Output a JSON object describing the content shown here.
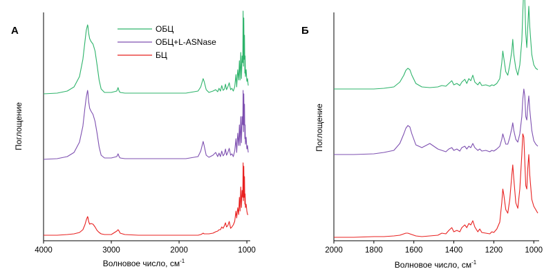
{
  "chart_data": [
    {
      "type": "line",
      "panel_label": "А",
      "xlabel": "Волновое число, см",
      "xlabel_superscript": "-1",
      "ylabel": "Поглощение",
      "xlim": [
        4000,
        950
      ],
      "x_ticks": [
        4000,
        3000,
        2000,
        1000
      ],
      "x_tick_labels": [
        "4000",
        "3000",
        "2000",
        "1000"
      ],
      "y_axis_values_shown": false,
      "legend": {
        "position": "top-center",
        "entries": [
          "ОБЦ",
          "ОБЦ+L-ASNase",
          "БЦ"
        ]
      },
      "series": [
        {
          "name": "ОБЦ",
          "color": "#2db36a",
          "offset": 2.05,
          "x": [
            4000,
            3800,
            3650,
            3550,
            3470,
            3420,
            3390,
            3370,
            3350,
            3345,
            3335,
            3320,
            3300,
            3270,
            3240,
            3210,
            3180,
            3150,
            3100,
            3000,
            2920,
            2900,
            2885,
            2870,
            2800,
            2600,
            2200,
            1900,
            1720,
            1680,
            1660,
            1645,
            1630,
            1600,
            1560,
            1500,
            1460,
            1430,
            1410,
            1390,
            1370,
            1350,
            1330,
            1315,
            1300,
            1280,
            1260,
            1240,
            1220,
            1200,
            1180,
            1160,
            1150,
            1135,
            1120,
            1110,
            1100,
            1090,
            1080,
            1070,
            1060,
            1055,
            1050,
            1045,
            1040,
            1035,
            1030,
            1025,
            1020,
            1010,
            1000,
            990,
            980
          ],
          "y": [
            0,
            0.01,
            0.04,
            0.1,
            0.25,
            0.5,
            0.75,
            0.92,
            1.0,
            0.98,
            0.88,
            0.8,
            0.76,
            0.72,
            0.62,
            0.42,
            0.2,
            0.07,
            0.02,
            0.02,
            0.04,
            0.09,
            0.04,
            0.02,
            0.01,
            0.01,
            0.01,
            0.01,
            0.04,
            0.1,
            0.17,
            0.22,
            0.18,
            0.06,
            0.02,
            0.04,
            0.06,
            0.03,
            0.08,
            0.04,
            0.12,
            0.05,
            0.07,
            0.14,
            0.06,
            0.1,
            0.16,
            0.06,
            0.08,
            0.04,
            0.1,
            0.28,
            0.1,
            0.35,
            0.2,
            0.48,
            0.2,
            0.6,
            0.22,
            0.55,
            0.45,
            1.2,
            0.4,
            1.1,
            0.5,
            0.85,
            0.3,
            0.55,
            0.25,
            0.35,
            0.18,
            0.22,
            0.12
          ]
        },
        {
          "name": "ОБЦ+L-ASNase",
          "color": "#7d4fb0",
          "offset": 1.1,
          "x": [
            4000,
            3800,
            3650,
            3550,
            3470,
            3420,
            3390,
            3370,
            3350,
            3345,
            3335,
            3320,
            3300,
            3270,
            3240,
            3210,
            3180,
            3150,
            3100,
            3000,
            2920,
            2900,
            2885,
            2870,
            2800,
            2600,
            2200,
            1900,
            1720,
            1680,
            1660,
            1645,
            1630,
            1600,
            1560,
            1500,
            1460,
            1430,
            1410,
            1390,
            1370,
            1350,
            1330,
            1315,
            1300,
            1280,
            1260,
            1240,
            1220,
            1200,
            1180,
            1160,
            1150,
            1135,
            1120,
            1110,
            1100,
            1090,
            1080,
            1070,
            1060,
            1055,
            1050,
            1045,
            1040,
            1035,
            1030,
            1025,
            1020,
            1010,
            1000,
            990,
            980
          ],
          "y": [
            0,
            0.01,
            0.04,
            0.1,
            0.25,
            0.48,
            0.74,
            0.9,
            1.0,
            0.97,
            0.84,
            0.74,
            0.7,
            0.65,
            0.55,
            0.38,
            0.18,
            0.06,
            0.02,
            0.02,
            0.04,
            0.08,
            0.04,
            0.02,
            0.01,
            0.01,
            0.01,
            0.01,
            0.04,
            0.12,
            0.2,
            0.26,
            0.2,
            0.06,
            0.03,
            0.06,
            0.1,
            0.04,
            0.09,
            0.04,
            0.12,
            0.05,
            0.08,
            0.15,
            0.06,
            0.1,
            0.16,
            0.06,
            0.08,
            0.04,
            0.12,
            0.3,
            0.1,
            0.38,
            0.2,
            0.5,
            0.2,
            0.62,
            0.24,
            0.62,
            0.5,
            1.0,
            0.4,
            0.95,
            0.5,
            0.8,
            0.3,
            0.5,
            0.22,
            0.32,
            0.15,
            0.2,
            0.1
          ]
        },
        {
          "name": "БЦ",
          "color": "#e8201f",
          "offset": 0.0,
          "x": [
            4000,
            3800,
            3650,
            3550,
            3470,
            3420,
            3390,
            3370,
            3350,
            3345,
            3335,
            3320,
            3300,
            3270,
            3240,
            3210,
            3180,
            3150,
            3100,
            3000,
            2920,
            2900,
            2885,
            2870,
            2800,
            2600,
            2200,
            1900,
            1720,
            1680,
            1660,
            1645,
            1630,
            1600,
            1560,
            1500,
            1460,
            1430,
            1410,
            1390,
            1370,
            1350,
            1330,
            1315,
            1300,
            1280,
            1260,
            1240,
            1220,
            1200,
            1180,
            1160,
            1150,
            1135,
            1120,
            1110,
            1100,
            1090,
            1080,
            1070,
            1060,
            1055,
            1050,
            1045,
            1040,
            1035,
            1030,
            1025,
            1020,
            1010,
            1000,
            990,
            980
          ],
          "y": [
            0,
            0.0,
            0.01,
            0.02,
            0.04,
            0.08,
            0.15,
            0.22,
            0.27,
            0.26,
            0.2,
            0.16,
            0.17,
            0.16,
            0.12,
            0.07,
            0.04,
            0.02,
            0.01,
            0.01,
            0.06,
            0.08,
            0.06,
            0.03,
            0.01,
            0.0,
            0.0,
            0.0,
            0.0,
            0.01,
            0.02,
            0.03,
            0.02,
            0.02,
            0.02,
            0.03,
            0.05,
            0.06,
            0.08,
            0.08,
            0.12,
            0.1,
            0.14,
            0.18,
            0.12,
            0.14,
            0.2,
            0.1,
            0.12,
            0.15,
            0.2,
            0.35,
            0.25,
            0.4,
            0.3,
            0.55,
            0.35,
            0.7,
            0.4,
            0.65,
            0.55,
            1.05,
            0.5,
            1.0,
            0.55,
            0.85,
            0.45,
            0.6,
            0.4,
            0.45,
            0.35,
            0.3,
            0.3
          ]
        }
      ]
    },
    {
      "type": "line",
      "panel_label": "Б",
      "xlabel": "Волновое число, см",
      "xlabel_superscript": "-1",
      "ylabel": "Поглощение",
      "xlim": [
        2000,
        980
      ],
      "x_ticks": [
        2000,
        1800,
        1600,
        1400,
        1200,
        1000
      ],
      "x_tick_labels": [
        "2000",
        "1800",
        "1600",
        "1400",
        "1200",
        "1000"
      ],
      "y_axis_values_shown": false,
      "series": [
        {
          "name": "ОБЦ",
          "color": "#2db36a",
          "offset": 2.15,
          "x": [
            2000,
            1900,
            1800,
            1750,
            1700,
            1670,
            1650,
            1640,
            1630,
            1620,
            1610,
            1590,
            1560,
            1520,
            1480,
            1460,
            1440,
            1425,
            1410,
            1400,
            1385,
            1370,
            1360,
            1345,
            1335,
            1325,
            1315,
            1305,
            1295,
            1280,
            1270,
            1260,
            1240,
            1220,
            1210,
            1200,
            1185,
            1170,
            1160,
            1155,
            1150,
            1140,
            1130,
            1120,
            1110,
            1105,
            1100,
            1090,
            1080,
            1070,
            1060,
            1055,
            1050,
            1045,
            1040,
            1035,
            1030,
            1025,
            1020,
            1010,
            1000,
            990,
            980
          ],
          "y": [
            0.0,
            0.0,
            0.0,
            0.01,
            0.03,
            0.1,
            0.2,
            0.27,
            0.3,
            0.28,
            0.2,
            0.08,
            0.03,
            0.02,
            0.03,
            0.05,
            0.04,
            0.08,
            0.12,
            0.06,
            0.08,
            0.05,
            0.1,
            0.14,
            0.08,
            0.15,
            0.12,
            0.2,
            0.1,
            0.06,
            0.1,
            0.05,
            0.06,
            0.04,
            0.06,
            0.05,
            0.08,
            0.15,
            0.38,
            0.55,
            0.45,
            0.25,
            0.2,
            0.35,
            0.55,
            0.72,
            0.5,
            0.3,
            0.2,
            0.35,
            0.7,
            1.1,
            1.5,
            1.3,
            0.8,
            0.6,
            0.9,
            1.2,
            0.9,
            0.5,
            0.35,
            0.3,
            0.28
          ]
        },
        {
          "name": "ОБЦ+L-ASNase",
          "color": "#7d4fb0",
          "offset": 1.2,
          "x": [
            2000,
            1900,
            1800,
            1750,
            1700,
            1670,
            1650,
            1640,
            1630,
            1620,
            1610,
            1590,
            1560,
            1520,
            1480,
            1460,
            1440,
            1425,
            1410,
            1400,
            1385,
            1370,
            1360,
            1345,
            1335,
            1325,
            1315,
            1305,
            1295,
            1280,
            1270,
            1260,
            1240,
            1220,
            1210,
            1200,
            1185,
            1170,
            1160,
            1155,
            1150,
            1140,
            1130,
            1120,
            1110,
            1105,
            1100,
            1090,
            1080,
            1070,
            1060,
            1055,
            1050,
            1045,
            1040,
            1035,
            1030,
            1025,
            1020,
            1010,
            1000,
            990,
            980
          ],
          "y": [
            0.0,
            0.0,
            0.01,
            0.03,
            0.06,
            0.16,
            0.3,
            0.38,
            0.42,
            0.4,
            0.3,
            0.14,
            0.1,
            0.16,
            0.08,
            0.06,
            0.04,
            0.08,
            0.1,
            0.06,
            0.08,
            0.05,
            0.1,
            0.12,
            0.08,
            0.12,
            0.1,
            0.16,
            0.1,
            0.06,
            0.08,
            0.05,
            0.06,
            0.04,
            0.06,
            0.05,
            0.08,
            0.12,
            0.22,
            0.3,
            0.25,
            0.15,
            0.15,
            0.25,
            0.38,
            0.46,
            0.35,
            0.22,
            0.18,
            0.3,
            0.55,
            0.8,
            0.95,
            0.85,
            0.55,
            0.5,
            0.7,
            0.85,
            0.65,
            0.35,
            0.2,
            0.15,
            0.12
          ]
        },
        {
          "name": "БЦ",
          "color": "#e8201f",
          "offset": 0.0,
          "x": [
            2000,
            1900,
            1800,
            1750,
            1700,
            1670,
            1650,
            1640,
            1630,
            1620,
            1610,
            1590,
            1560,
            1520,
            1480,
            1460,
            1440,
            1425,
            1410,
            1400,
            1385,
            1370,
            1360,
            1345,
            1335,
            1325,
            1315,
            1305,
            1295,
            1280,
            1270,
            1260,
            1240,
            1220,
            1210,
            1200,
            1185,
            1170,
            1160,
            1155,
            1150,
            1140,
            1130,
            1120,
            1110,
            1105,
            1100,
            1090,
            1080,
            1070,
            1060,
            1055,
            1050,
            1045,
            1040,
            1035,
            1030,
            1025,
            1020,
            1010,
            1000,
            990,
            980
          ],
          "y": [
            0.0,
            0.0,
            0.01,
            0.01,
            0.02,
            0.03,
            0.05,
            0.06,
            0.06,
            0.05,
            0.04,
            0.02,
            0.01,
            0.02,
            0.03,
            0.06,
            0.05,
            0.1,
            0.14,
            0.08,
            0.1,
            0.08,
            0.14,
            0.18,
            0.14,
            0.2,
            0.18,
            0.24,
            0.15,
            0.08,
            0.12,
            0.07,
            0.06,
            0.05,
            0.08,
            0.07,
            0.12,
            0.22,
            0.5,
            0.7,
            0.62,
            0.4,
            0.35,
            0.55,
            0.9,
            1.05,
            0.85,
            0.5,
            0.42,
            0.7,
            1.2,
            1.5,
            1.45,
            1.1,
            0.75,
            0.7,
            1.0,
            1.2,
            0.9,
            0.55,
            0.45,
            0.4,
            0.35
          ]
        }
      ]
    }
  ]
}
